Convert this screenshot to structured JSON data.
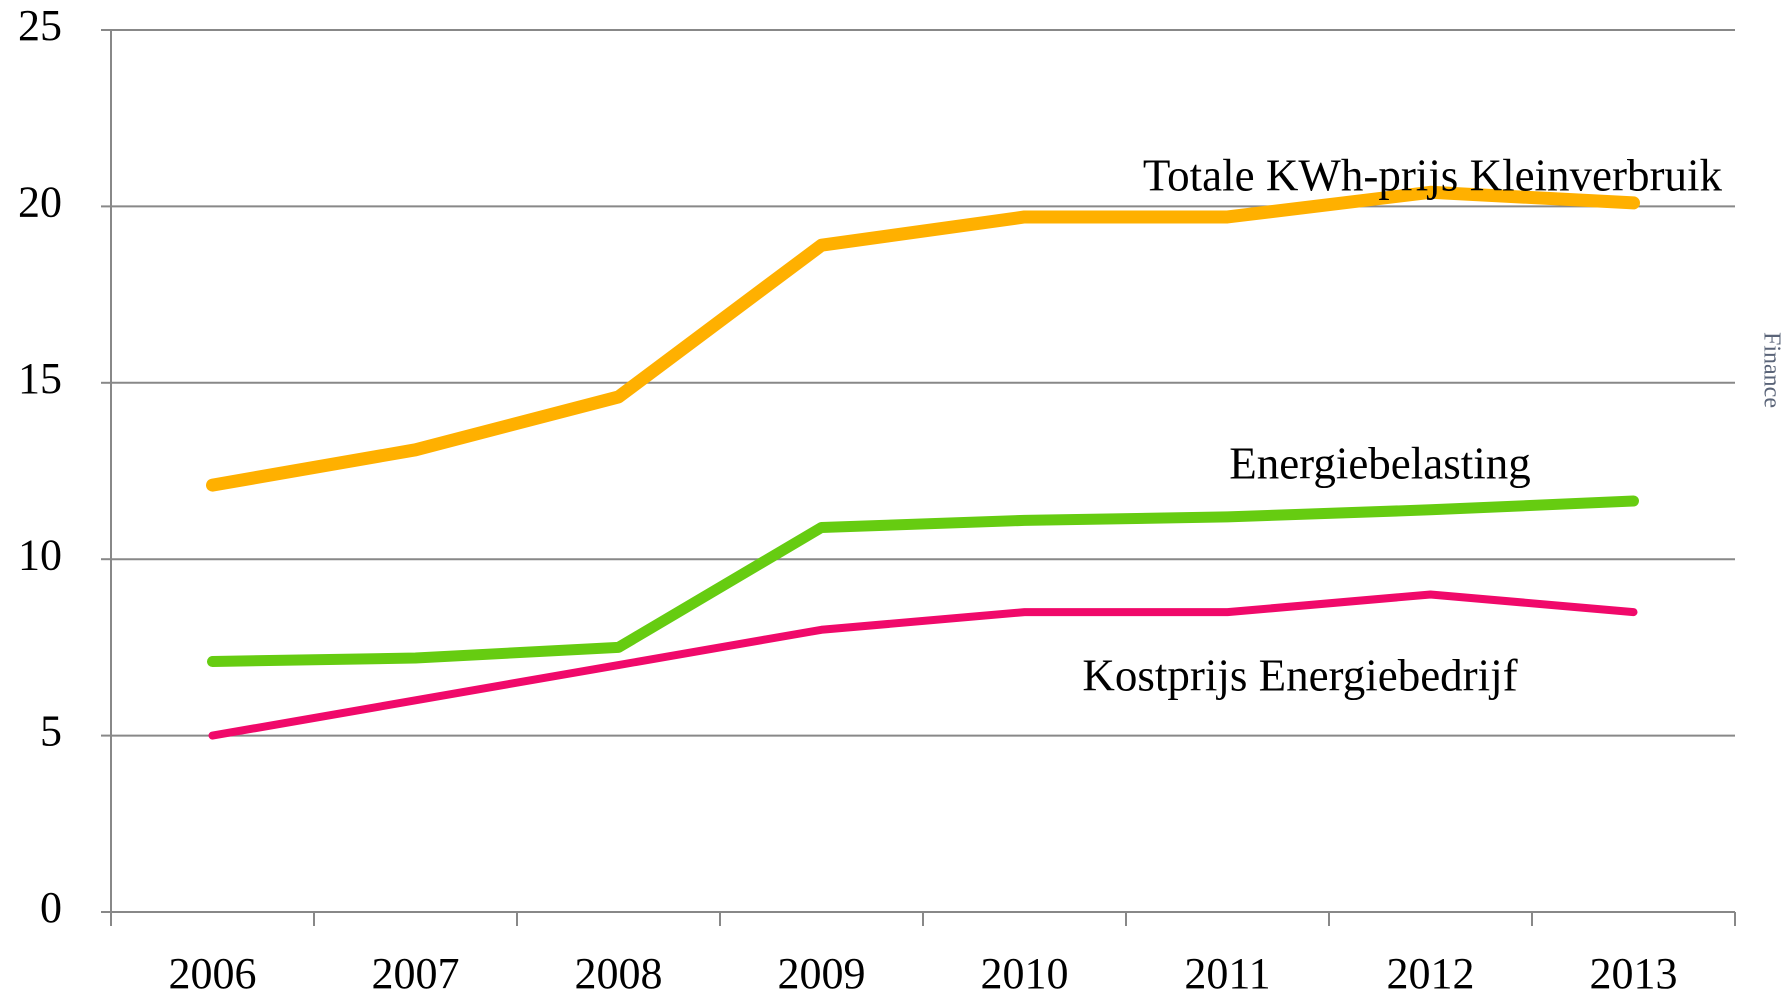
{
  "chart_data": {
    "type": "line",
    "categories": [
      "2006",
      "2007",
      "2008",
      "2009",
      "2010",
      "2011",
      "2012",
      "2013"
    ],
    "series": [
      {
        "name": "Totale KWh-prijs Kleinverbruik",
        "color": "#ffb000",
        "values": [
          12.1,
          13.1,
          14.6,
          18.9,
          19.7,
          19.7,
          20.4,
          20.1
        ]
      },
      {
        "name": "Energiebelasting",
        "color": "#66cc11",
        "values": [
          7.1,
          7.2,
          7.5,
          10.9,
          11.1,
          11.2,
          11.4,
          11.65
        ]
      },
      {
        "name": "Kostprijs Energiebedrijf",
        "color": "#f0096a",
        "values": [
          5.0,
          6.0,
          7.0,
          8.0,
          8.5,
          8.5,
          9.0,
          8.5
        ]
      }
    ],
    "ylim": [
      0,
      25
    ],
    "yticks": [
      0,
      5,
      10,
      15,
      20,
      25
    ],
    "grid": true,
    "annotation": "Finance"
  }
}
